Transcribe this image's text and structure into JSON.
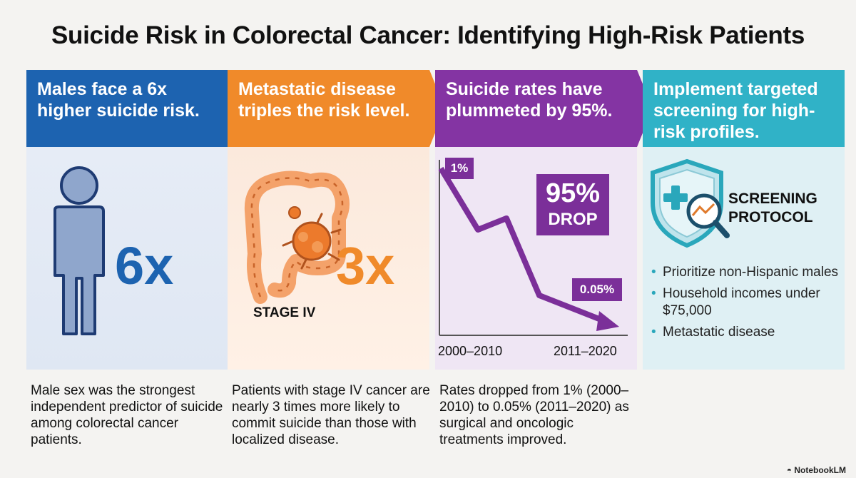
{
  "title": "Suicide Risk in Colorectal Cancer: Identifying High-Risk Patients",
  "columns": [
    {
      "heading": "Males face a 6x higher suicide risk.",
      "stat": "6x",
      "caption": "Male sex was the strongest independent predictor of suicide among colorectal cancer patients.",
      "colors": {
        "header": "#1d63b0",
        "figure": "#8fa6cc",
        "figure_outline": "#1e3b73"
      }
    },
    {
      "heading": "Metastatic disease triples the risk level.",
      "stat": "3x",
      "stage_label": "STAGE IV",
      "caption": "Patients with stage IV cancer are nearly 3 times more likely to commit suicide than those with localized disease.",
      "colors": {
        "header": "#f08a2a",
        "colon": "#f4a26a",
        "tumor": "#ec7a2c"
      }
    },
    {
      "heading": "Suicide rates have plummeted by 95%.",
      "badge_start": "1%",
      "badge_drop": "95%",
      "badge_drop_sub": "DROP",
      "badge_end": "0.05%",
      "x_start_label": "2000–2010",
      "x_end_label": "2011–2020",
      "caption": "Rates dropped from 1% (2000–2010) to 0.05% (2011–2020) as surgical and oncologic treatments improved.",
      "colors": {
        "header": "#8434a3",
        "line": "#7b2f99"
      }
    },
    {
      "heading": "Implement targeted screening for high-risk profiles.",
      "screening_line1": "SCREENING",
      "screening_line2": "PROTOCOL",
      "bullets": [
        "Prioritize non-Hispanic males",
        "Household incomes under $75,000",
        "Metastatic disease"
      ],
      "colors": {
        "header": "#30b2c7",
        "shield": "#2aa7bb"
      }
    }
  ],
  "brand": "NotebookLM"
}
